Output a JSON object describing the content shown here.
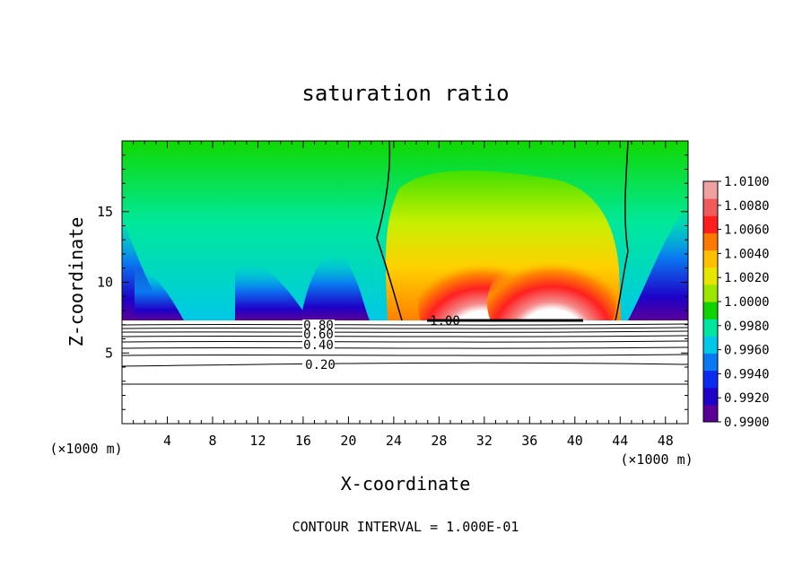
{
  "chart_data": {
    "type": "heatmap",
    "title": "saturation ratio",
    "xlabel": "X-coordinate",
    "ylabel": "Z-coordinate",
    "x_unit_left": "(×1000 m)",
    "x_unit_right": "(×1000 m)",
    "footer": "CONTOUR INTERVAL = 1.000E-01",
    "xlim": [
      0,
      50
    ],
    "ylim": [
      0,
      20
    ],
    "x_ticks": [
      4,
      8,
      12,
      16,
      20,
      24,
      28,
      32,
      36,
      40,
      44,
      48
    ],
    "y_ticks": [
      5,
      10,
      15
    ],
    "colorbar": {
      "levels": [
        0.99,
        0.992,
        0.994,
        0.996,
        0.998,
        1.0,
        1.002,
        1.004,
        1.006,
        1.008,
        1.01
      ],
      "labels": [
        "0.9900",
        "0.9920",
        "0.9940",
        "0.9960",
        "0.9980",
        "1.0000",
        "1.0020",
        "1.0040",
        "1.0060",
        "1.0080",
        "1.0100"
      ],
      "colors": [
        "#5a0096",
        "#1e00c8",
        "#0a2cf0",
        "#0a78f0",
        "#00c8e6",
        "#00e6a0",
        "#10d200",
        "#9ce600",
        "#e6e600",
        "#ffc000",
        "#ff7800",
        "#ff1e1e",
        "#f05a5a",
        "#f0a0a0"
      ]
    },
    "contour_labels": [
      "0.80",
      "0.60",
      "0.40",
      "0.20",
      "1.00"
    ],
    "cloud_base_z": 7.3
  }
}
